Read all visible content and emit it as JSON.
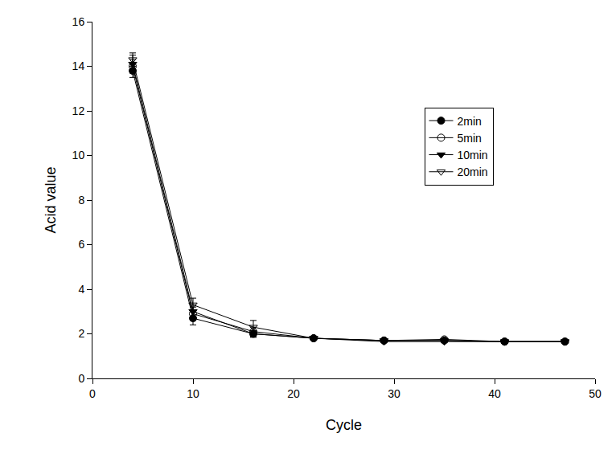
{
  "chart_data": {
    "type": "line",
    "x_label": "Cycle",
    "y_label": "Acid value",
    "xlim": [
      0,
      50
    ],
    "xticks": [
      0,
      10,
      20,
      30,
      40,
      50
    ],
    "ylim": [
      0,
      16
    ],
    "yticks": [
      0,
      2,
      4,
      6,
      8,
      10,
      12,
      14,
      16
    ],
    "grid": false,
    "legend": "upper right",
    "x": [
      4,
      10,
      16,
      22,
      29,
      35,
      41,
      47
    ],
    "series": [
      {
        "name": "2min",
        "color": "#000000",
        "marker": "circle",
        "values": [
          13.8,
          2.7,
          2.0,
          1.8,
          1.7,
          1.7,
          1.65,
          1.65
        ],
        "error": [
          0.3,
          0.3,
          0.15,
          0.05,
          0.05,
          0.05,
          0.05,
          0.05
        ]
      },
      {
        "name": "5min",
        "color": "#000000",
        "marker": "circle-open",
        "values": [
          14.0,
          2.9,
          2.1,
          1.8,
          1.7,
          1.75,
          1.65,
          1.65
        ],
        "error": [
          0.3,
          0.3,
          0.2,
          0.05,
          0.05,
          0.05,
          0.05,
          0.05
        ]
      },
      {
        "name": "10min",
        "color": "#000000",
        "marker": "triangle-down",
        "values": [
          14.1,
          3.0,
          2.0,
          1.8,
          1.65,
          1.65,
          1.65,
          1.65
        ],
        "error": [
          0.4,
          0.3,
          0.15,
          0.05,
          0.05,
          0.05,
          0.05,
          0.05
        ]
      },
      {
        "name": "20min",
        "color": "#000000",
        "marker": "triangle-down-open",
        "values": [
          14.3,
          3.3,
          2.3,
          1.8,
          1.7,
          1.7,
          1.65,
          1.65
        ],
        "error": [
          0.3,
          0.3,
          0.3,
          0.05,
          0.05,
          0.05,
          0.05,
          0.05
        ]
      }
    ]
  }
}
